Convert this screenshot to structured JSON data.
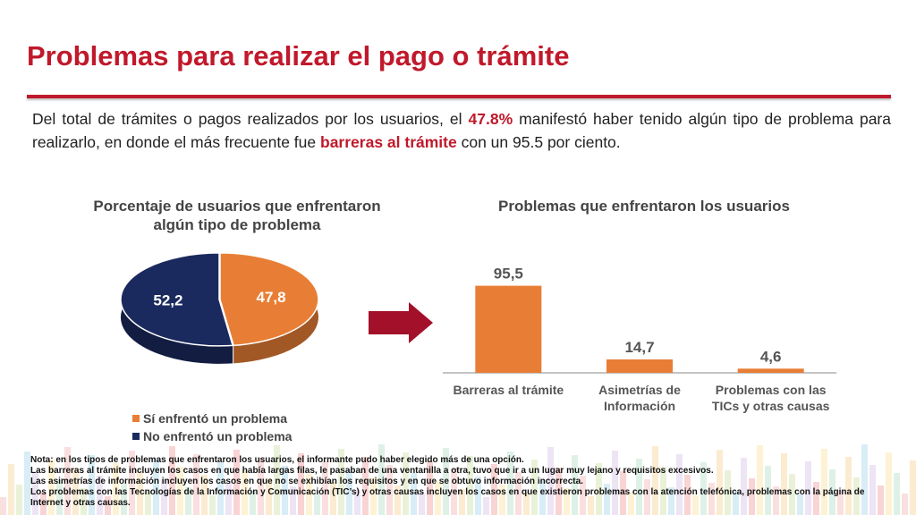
{
  "slide": {
    "title": "Problemas para realizar el pago o trámite",
    "intro": {
      "t1": "Del total de trámites o pagos realizados por los usuarios, el ",
      "h1": "47.8%",
      "t2": " manifestó haber tenido algún tipo de problema para realizarlo, en donde el más frecuente fue ",
      "h2": "barreras al trámite",
      "t3": " con un ",
      "h3": "95.5 por ciento",
      "t4": "."
    },
    "note_lines": [
      "Nota: en los tipos de problemas que enfrentaron los usuarios, el informante pudo haber elegido más de una opción.",
      "Las barreras al trámite incluyen los casos en que había largas filas, le pasaban de una ventanilla a otra, tuvo que ir a un lugar muy lejano y requisitos excesivos.",
      "Las asimetrías de información incluyen los casos en que no se exhibían los requisitos y en que se obtuvo información incorrecta.",
      "Los problemas con las Tecnologías de la Información y Comunicación (TIC’s) y otras causas incluyen los casos en que existieron problemas con la atención telefónica, problemas con la página de Internet y otras causas."
    ],
    "colors": {
      "accent": "#c0192b",
      "orange": "#e87e35",
      "navy": "#1b2a5e"
    }
  },
  "chart_data": [
    {
      "type": "pie",
      "title_line1": "Porcentaje de usuarios que enfrentaron",
      "title_line2": "algún tipo de problema",
      "slices": [
        {
          "label": "Sí enfrentó un problema",
          "value": 47.8,
          "display": "47,8",
          "color": "#e87e35"
        },
        {
          "label": "No enfrentó un problema",
          "value": 52.2,
          "display": "52,2",
          "color": "#1b2a5e"
        }
      ],
      "legend_position": "bottom"
    },
    {
      "type": "bar",
      "title": "Problemas que enfrentaron los usuarios",
      "categories": [
        [
          "Barreras al trámite"
        ],
        [
          "Asimetrías de",
          "Información"
        ],
        [
          "Problemas con las",
          "TICs  y otras  causas"
        ]
      ],
      "values": [
        95.5,
        14.7,
        4.6
      ],
      "labels": [
        "95,5",
        "14,7",
        "4,6"
      ],
      "color": "#e87e35",
      "ylim": [
        0,
        100
      ],
      "grid": false
    }
  ]
}
